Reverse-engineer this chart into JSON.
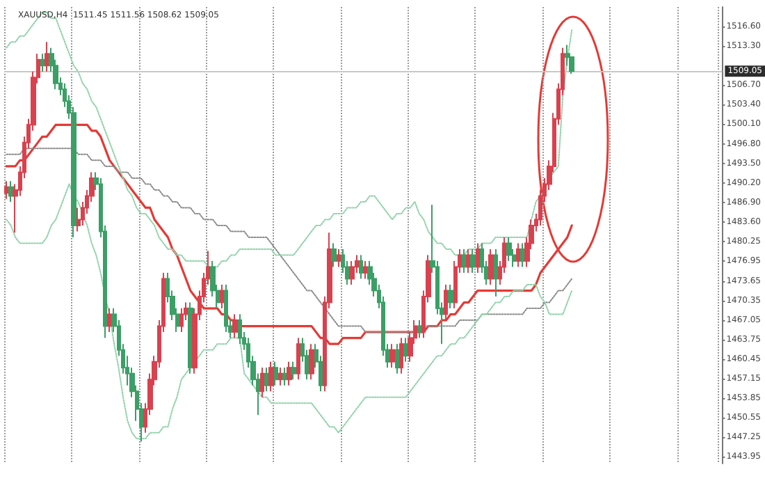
{
  "chart_data": {
    "type": "candlestick",
    "title": "XAUUSD,H4  1511.45 1511.56 1508.62 1509.05",
    "categories": [
      null,
      null,
      null,
      null,
      null,
      null,
      null,
      null,
      null,
      null,
      null,
      null,
      null,
      null,
      null,
      null,
      null,
      null,
      null,
      null,
      null,
      null,
      null,
      null,
      null,
      null,
      null,
      null,
      null,
      null,
      null,
      null,
      null,
      null,
      null,
      null,
      null,
      null,
      null,
      null,
      null,
      null,
      null,
      null,
      null,
      null,
      null,
      null,
      null,
      null,
      null,
      null,
      null,
      null,
      null,
      null,
      null,
      null,
      null,
      null,
      null,
      null,
      null,
      null,
      null,
      null,
      null,
      null,
      null,
      null,
      null,
      null,
      null,
      null,
      null,
      null,
      null,
      null,
      null,
      null,
      null,
      null,
      null,
      null,
      null,
      null,
      null,
      null,
      null,
      null,
      null,
      null,
      null,
      null,
      null,
      null,
      null,
      null,
      null,
      null,
      null,
      null,
      null,
      null,
      null,
      null,
      null,
      null,
      null,
      null,
      null,
      null,
      null,
      null,
      null,
      null,
      null,
      null,
      null,
      null,
      null,
      null,
      null,
      null,
      null,
      null,
      null
    ],
    "colors": [
      "#d9414f",
      "#3b9f66",
      "#d9414f",
      "#d9414f",
      "#d9414f",
      "#d9414f",
      "#d9414f",
      "#d9414f",
      "#3b9f66",
      "#d9414f",
      "#3b9f66",
      "#3b9f66",
      "#3b9f66",
      "#3b9f66",
      "#3b9f66",
      "#3b9f66",
      "#d9414f",
      "#d9414f",
      "#d9414f",
      "#d9414f",
      "#3b9f66",
      "#3b9f66",
      "#3b9f66",
      "#d9414f",
      "#3b9f66",
      "#3b9f66",
      "#3b9f66",
      "#3b9f66",
      "#3b9f66",
      "#3b9f66",
      "#3b9f66",
      "#d9414f",
      "#d9414f",
      "#d9414f",
      "#d9414f",
      "#d9414f",
      "#3b9f66",
      "#3b9f66",
      "#3b9f66",
      "#d9414f",
      "#d9414f",
      "#3b9f66",
      "#d9414f",
      "#d9414f",
      "#d9414f",
      "#d9414f",
      "#3b9f66",
      "#3b9f66",
      "#d9414f",
      "#3b9f66",
      "#3b9f66",
      "#d9414f",
      "#3b9f66",
      "#3b9f66",
      "#3b9f66",
      "#3b9f66",
      "#3b9f66",
      "#d9414f",
      "#3b9f66",
      "#d9414f",
      "#3b9f66",
      "#d9414f",
      "#3b9f66",
      "#d9414f",
      "#3b9f66",
      "#d9414f",
      "#3b9f66",
      "#3b9f66",
      "#d9414f",
      "#3b9f66",
      "#3b9f66",
      "#d9414f",
      "#d9414f",
      "#3b9f66",
      "#d9414f",
      "#3b9f66",
      "#3b9f66",
      "#d9414f",
      "#d9414f",
      "#3b9f66",
      "#d9414f",
      "#3b9f66",
      "#3b9f66",
      "#3b9f66",
      "#3b9f66",
      "#3b9f66",
      "#d9414f",
      "#3b9f66",
      "#d9414f",
      "#3b9f66",
      "#d9414f",
      "#d9414f",
      "#3b9f66",
      "#d9414f",
      "#d9414f",
      "#3b9f66",
      "#3b9f66",
      "#3b9f66",
      "#d9414f",
      "#3b9f66",
      "#d9414f",
      "#d9414f",
      "#3b9f66",
      "#d9414f",
      "#3b9f66",
      "#d9414f",
      "#3b9f66",
      "#3b9f66",
      "#d9414f",
      "#3b9f66",
      "#d9414f",
      "#d9414f",
      "#3b9f66",
      "#3b9f66",
      "#d9414f",
      "#3b9f66",
      "#d9414f",
      "#d9414f",
      "#d9414f",
      "#d9414f",
      "#d9414f",
      "#d9414f",
      "#d9414f",
      "#d9414f",
      "#d9414f",
      "#3b9f66",
      "#3b9f66"
    ],
    "ohlc": [
      [
        1488.5,
        1490.5,
        1487.5,
        1489.5
      ],
      [
        1489.5,
        1490.5,
        1487,
        1488
      ],
      [
        1488,
        1490,
        1481.8,
        1489
      ],
      [
        1489,
        1493,
        1488,
        1492
      ],
      [
        1492,
        1498,
        1491,
        1497
      ],
      [
        1497,
        1501,
        1496,
        1500
      ],
      [
        1500,
        1509,
        1499,
        1508
      ],
      [
        1508,
        1512,
        1507,
        1511
      ],
      [
        1511,
        1512,
        1509,
        1510
      ],
      [
        1510,
        1514,
        1509,
        1512
      ],
      [
        1512,
        1513,
        1509,
        1510
      ],
      [
        1510,
        1511,
        1506,
        1507
      ],
      [
        1507,
        1508,
        1505,
        1506
      ],
      [
        1506,
        1507,
        1503,
        1504
      ],
      [
        1504,
        1505,
        1501,
        1502
      ],
      [
        1502,
        1503,
        1481,
        1483
      ],
      [
        1483,
        1486,
        1482,
        1484
      ],
      [
        1484,
        1487,
        1483,
        1486
      ],
      [
        1486,
        1489,
        1485,
        1488
      ],
      [
        1488,
        1492,
        1487,
        1491
      ],
      [
        1491,
        1492,
        1489,
        1490
      ],
      [
        1490,
        1491,
        1481,
        1482
      ],
      [
        1482,
        1483,
        1464,
        1466
      ],
      [
        1466,
        1469,
        1465,
        1468
      ],
      [
        1468,
        1469,
        1465,
        1466
      ],
      [
        1466,
        1467,
        1461,
        1462
      ],
      [
        1462,
        1463,
        1458,
        1459
      ],
      [
        1459,
        1461,
        1456,
        1458
      ],
      [
        1458,
        1459,
        1454,
        1455
      ],
      [
        1455,
        1456,
        1450,
        1452
      ],
      [
        1452,
        1453,
        1446.5,
        1449
      ],
      [
        1449,
        1453,
        1448,
        1452
      ],
      [
        1452,
        1458,
        1451,
        1457
      ],
      [
        1457,
        1461,
        1456,
        1460
      ],
      [
        1460,
        1467,
        1459,
        1466
      ],
      [
        1466,
        1475,
        1465,
        1474
      ],
      [
        1474,
        1475,
        1470,
        1471
      ],
      [
        1471,
        1472,
        1467,
        1468
      ],
      [
        1468,
        1469,
        1465,
        1466
      ],
      [
        1466,
        1469,
        1465,
        1468
      ],
      [
        1468,
        1470,
        1467,
        1469
      ],
      [
        1469,
        1470,
        1458,
        1459
      ],
      [
        1459,
        1469,
        1458,
        1468
      ],
      [
        1468,
        1472,
        1467,
        1471
      ],
      [
        1471,
        1475,
        1470,
        1474
      ],
      [
        1474,
        1478.7,
        1473,
        1476
      ],
      [
        1476,
        1477,
        1471,
        1472
      ],
      [
        1472,
        1473,
        1469,
        1470
      ],
      [
        1470,
        1473,
        1469,
        1472
      ],
      [
        1472,
        1473,
        1465,
        1466
      ],
      [
        1466,
        1467,
        1464,
        1465
      ],
      [
        1465,
        1468,
        1464,
        1467
      ],
      [
        1467,
        1468,
        1463,
        1464
      ],
      [
        1464,
        1465,
        1462,
        1463
      ],
      [
        1463,
        1464,
        1459,
        1460
      ],
      [
        1460,
        1461,
        1456,
        1457
      ],
      [
        1457,
        1458,
        1451,
        1455
      ],
      [
        1455,
        1459,
        1454,
        1458
      ],
      [
        1458,
        1459,
        1455,
        1456
      ],
      [
        1456,
        1460,
        1455,
        1459
      ],
      [
        1459,
        1460,
        1456,
        1457
      ],
      [
        1457,
        1459,
        1456,
        1458
      ],
      [
        1458,
        1459,
        1456,
        1457
      ],
      [
        1457,
        1460,
        1456,
        1459
      ],
      [
        1459,
        1460,
        1457,
        1458
      ],
      [
        1458,
        1464,
        1457,
        1463
      ],
      [
        1463,
        1464,
        1460,
        1461
      ],
      [
        1461,
        1462,
        1457,
        1458
      ],
      [
        1458,
        1463,
        1457,
        1462
      ],
      [
        1462,
        1463,
        1459,
        1460
      ],
      [
        1460,
        1461,
        1455,
        1456
      ],
      [
        1456,
        1471,
        1455,
        1470
      ],
      [
        1470,
        1481.8,
        1469,
        1479
      ],
      [
        1479,
        1480,
        1476,
        1477
      ],
      [
        1477,
        1479,
        1476,
        1478
      ],
      [
        1478,
        1479,
        1475,
        1476
      ],
      [
        1476,
        1477,
        1473,
        1474
      ],
      [
        1474,
        1477,
        1473,
        1476
      ],
      [
        1476,
        1478,
        1475,
        1477
      ],
      [
        1477,
        1478,
        1474,
        1475
      ],
      [
        1475,
        1477,
        1474,
        1476
      ],
      [
        1476,
        1477,
        1473,
        1474
      ],
      [
        1474,
        1475,
        1471,
        1472
      ],
      [
        1472,
        1473,
        1469,
        1470
      ],
      [
        1470,
        1471,
        1461,
        1462
      ],
      [
        1462,
        1463,
        1459,
        1460
      ],
      [
        1460,
        1463,
        1459,
        1462
      ],
      [
        1462,
        1463,
        1458,
        1459
      ],
      [
        1459,
        1464,
        1458,
        1463
      ],
      [
        1463,
        1464,
        1460,
        1461
      ],
      [
        1461,
        1465,
        1460,
        1464
      ],
      [
        1464,
        1467,
        1463,
        1466
      ],
      [
        1466,
        1467,
        1464,
        1465
      ],
      [
        1465,
        1472,
        1464,
        1471
      ],
      [
        1471,
        1478,
        1470,
        1477
      ],
      [
        1477,
        1486.5,
        1475,
        1476
      ],
      [
        1476,
        1477,
        1468,
        1469
      ],
      [
        1469,
        1470,
        1463,
        1468
      ],
      [
        1468,
        1473,
        1467,
        1472
      ],
      [
        1472,
        1473,
        1469,
        1470
      ],
      [
        1470,
        1477,
        1469,
        1476
      ],
      [
        1476,
        1479,
        1475,
        1478
      ],
      [
        1478,
        1479,
        1475,
        1476
      ],
      [
        1476,
        1479,
        1475,
        1478
      ],
      [
        1478,
        1479,
        1475,
        1476
      ],
      [
        1476,
        1480,
        1475,
        1479
      ],
      [
        1479,
        1480,
        1475,
        1476
      ],
      [
        1476,
        1477,
        1473,
        1474
      ],
      [
        1474,
        1479,
        1473,
        1478
      ],
      [
        1478,
        1479,
        1471,
        1474
      ],
      [
        1474,
        1477,
        1473,
        1476
      ],
      [
        1476,
        1481,
        1475,
        1480
      ],
      [
        1480,
        1481,
        1477,
        1478
      ],
      [
        1478,
        1479,
        1476,
        1477
      ],
      [
        1477,
        1480,
        1476,
        1479
      ],
      [
        1479,
        1480,
        1476,
        1477
      ],
      [
        1477,
        1481,
        1476,
        1480
      ],
      [
        1480,
        1484,
        1479,
        1483
      ],
      [
        1483,
        1485,
        1482,
        1484
      ],
      [
        1484,
        1489,
        1483,
        1488
      ],
      [
        1488,
        1491,
        1487,
        1490
      ],
      [
        1490,
        1494,
        1489,
        1493
      ],
      [
        1493,
        1502,
        1492,
        1501
      ],
      [
        1501,
        1507,
        1500,
        1506
      ],
      [
        1506,
        1513,
        1505,
        1512
      ],
      [
        1512,
        1513.5,
        1510,
        1511.45
      ],
      [
        1511.45,
        1511.56,
        1508.62,
        1509.05
      ]
    ],
    "series": [
      {
        "type": "line",
        "color": "#e53935",
        "line_style": "solid",
        "values": [
          1493,
          1493,
          1493,
          1494,
          1494,
          1495,
          1496,
          1497,
          1498,
          1498,
          1499,
          1500,
          1500,
          1500,
          1500,
          1500,
          1500,
          1500,
          1500,
          1499,
          1499,
          1498,
          1496,
          1494,
          1493,
          1492,
          1491,
          1490,
          1489,
          1488,
          1487,
          1486,
          1486,
          1484,
          1483,
          1482,
          1481,
          1479,
          1478,
          1476,
          1474,
          1472,
          1471,
          1470,
          1469,
          1469,
          1469,
          1469,
          1468,
          1468,
          1467,
          1467,
          1466,
          1466,
          1466,
          1466,
          1466,
          1466,
          1466,
          1466,
          1466,
          1466,
          1466,
          1466,
          1466,
          1466,
          1466,
          1466,
          1466,
          1465,
          1464,
          1464,
          1463,
          1463,
          1463,
          1464,
          1464,
          1464,
          1464,
          1464,
          1465,
          1465,
          1465,
          1465,
          1465,
          1465,
          1465,
          1465,
          1465,
          1465,
          1465,
          1465,
          1465,
          1465,
          1466,
          1466,
          1466,
          1467,
          1467,
          1468,
          1468,
          1469,
          1470,
          1470,
          1471,
          1472,
          1472,
          1472,
          1472,
          1472,
          1472,
          1472,
          1472,
          1472,
          1472,
          1472,
          1472,
          1472,
          1473,
          1475,
          1476,
          1477,
          1478,
          1479,
          1480,
          1481,
          1483
        ]
      },
      {
        "type": "line",
        "color": "#8c8c8c",
        "line_style": "dotted",
        "values": [
          1495,
          1495,
          1495,
          1495,
          1496,
          1496,
          1496,
          1496,
          1496,
          1496,
          1496,
          1496,
          1496,
          1496,
          1496,
          1496,
          1495,
          1495,
          1495,
          1494,
          1494,
          1494,
          1493,
          1493,
          1493,
          1492,
          1492,
          1492,
          1491,
          1491,
          1491,
          1490,
          1490,
          1489,
          1489,
          1488,
          1488,
          1487,
          1487,
          1486,
          1486,
          1486,
          1485,
          1485,
          1484,
          1484,
          1484,
          1483,
          1483,
          1483,
          1482,
          1482,
          1482,
          1482,
          1481,
          1481,
          1481,
          1481,
          1481,
          1480,
          1479,
          1478,
          1477,
          1476,
          1475,
          1474,
          1473,
          1472,
          1472,
          1471,
          1470,
          1469,
          1468,
          1467,
          1466,
          1466,
          1466,
          1466,
          1466,
          1466,
          1465,
          1465,
          1465,
          1465,
          1465,
          1465,
          1465,
          1465,
          1465,
          1465,
          1465,
          1465,
          1466,
          1466,
          1466,
          1466,
          1466,
          1466,
          1466,
          1466,
          1466,
          1467,
          1467,
          1467,
          1467,
          1467,
          1468,
          1468,
          1468,
          1468,
          1468,
          1468,
          1468,
          1468,
          1468,
          1468,
          1469,
          1469,
          1469,
          1469,
          1470,
          1470,
          1471,
          1472,
          1472,
          1473,
          1474
        ]
      },
      {
        "type": "line",
        "color": "#8fd3a9",
        "line_style": "dotted",
        "values": [
          1513,
          1514,
          1514,
          1515,
          1515,
          1516,
          1517,
          1518,
          1519,
          1519,
          1518,
          1518,
          1516,
          1514,
          1512,
          1510,
          1509,
          1507,
          1506,
          1504,
          1503,
          1501,
          1499,
          1497,
          1495,
          1493,
          1491,
          1489,
          1488,
          1486,
          1485,
          1485,
          1484,
          1483,
          1481,
          1480,
          1479,
          1479,
          1478,
          1478,
          1477,
          1477,
          1477,
          1477,
          1477,
          1476,
          1476,
          1476,
          1477,
          1477,
          1478,
          1478,
          1479,
          1479,
          1479,
          1479,
          1479,
          1479,
          1479,
          1479,
          1478,
          1478,
          1478,
          1478,
          1478,
          1479,
          1480,
          1481,
          1482,
          1483,
          1483,
          1484,
          1484,
          1485,
          1485,
          1485,
          1486,
          1486,
          1486,
          1487,
          1487,
          1488,
          1488,
          1487,
          1486,
          1485,
          1484,
          1485,
          1485,
          1486,
          1486,
          1487,
          1485,
          1484,
          1482,
          1481,
          1480,
          1480,
          1479,
          1479,
          1478,
          1478,
          1478,
          1479,
          1479,
          1479,
          1480,
          1480,
          1480,
          1481,
          1481,
          1481,
          1481,
          1481,
          1481,
          1481,
          1481,
          1484,
          1487,
          1488,
          1489,
          1491,
          1492,
          1493,
          1505,
          1511,
          1516
        ]
      },
      {
        "type": "line",
        "color": "#8fd3a9",
        "line_style": "dotted",
        "values": [
          1484,
          1483,
          1481,
          1480,
          1480,
          1480,
          1480,
          1480,
          1480,
          1481,
          1483,
          1484,
          1486,
          1488,
          1490,
          1488,
          1487,
          1485,
          1483,
          1480,
          1478,
          1475,
          1471,
          1468,
          1463,
          1459,
          1454,
          1450,
          1448,
          1447,
          1447,
          1447,
          1448,
          1448,
          1448,
          1449,
          1449,
          1452,
          1454,
          1457,
          1458,
          1459,
          1460,
          1461,
          1462,
          1462,
          1462,
          1463,
          1463,
          1463,
          1464,
          1464,
          1464,
          1458,
          1457,
          1456,
          1455,
          1454,
          1454,
          1453,
          1453,
          1453,
          1453,
          1453,
          1453,
          1453,
          1453,
          1453,
          1453,
          1452,
          1451,
          1450,
          1449,
          1449,
          1448,
          1449,
          1450,
          1451,
          1452,
          1453,
          1454,
          1454,
          1454,
          1454,
          1454,
          1454,
          1454,
          1454,
          1454,
          1454,
          1455,
          1456,
          1457,
          1458,
          1459,
          1460,
          1461,
          1461,
          1462,
          1463,
          1463,
          1464,
          1464,
          1465,
          1466,
          1467,
          1468,
          1468,
          1469,
          1470,
          1470,
          1471,
          1471,
          1472,
          1472,
          1472,
          1473,
          1473,
          1473,
          1471,
          1470,
          1468,
          1468,
          1468,
          1468,
          1470,
          1472
        ]
      }
    ],
    "ylim": [
      1442.8,
      1519.9
    ],
    "yticks": [
      {
        "value": 1516.6,
        "label": "1516.60"
      },
      {
        "value": 1513.3,
        "label": "1513.30"
      },
      {
        "value": 1506.7,
        "label": "1506.70"
      },
      {
        "value": 1503.4,
        "label": "1503.40"
      },
      {
        "value": 1500.1,
        "label": "1500.10"
      },
      {
        "value": 1496.8,
        "label": "1496.80"
      },
      {
        "value": 1493.5,
        "label": "1493.50"
      },
      {
        "value": 1490.2,
        "label": "1490.20"
      },
      {
        "value": 1486.9,
        "label": "1486.90"
      },
      {
        "value": 1483.6,
        "label": "1483.60"
      },
      {
        "value": 1480.25,
        "label": "1480.25"
      },
      {
        "value": 1476.95,
        "label": "1476.95"
      },
      {
        "value": 1473.65,
        "label": "1473.65"
      },
      {
        "value": 1470.35,
        "label": "1470.35"
      },
      {
        "value": 1467.05,
        "label": "1467.05"
      },
      {
        "value": 1463.75,
        "label": "1463.75"
      },
      {
        "value": 1460.45,
        "label": "1460.45"
      },
      {
        "value": 1457.15,
        "label": "1457.15"
      },
      {
        "value": 1453.85,
        "label": "1453.85"
      },
      {
        "value": 1450.55,
        "label": "1450.55"
      },
      {
        "value": 1447.25,
        "label": "1447.25"
      },
      {
        "value": 1443.95,
        "label": "1443.95"
      }
    ],
    "ref_lines": [
      {
        "axis": "y",
        "value": 1509.05,
        "label": "1509.05",
        "color": "#c8c8c8"
      }
    ],
    "grid": "x",
    "tick_labels": "y"
  }
}
